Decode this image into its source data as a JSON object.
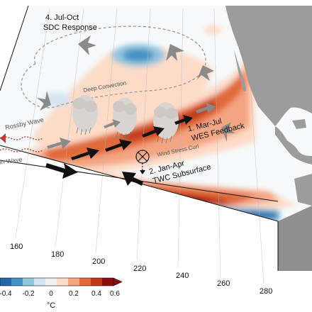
{
  "map": {
    "stages": {
      "stage1": [
        "1. Mar-Jul",
        "WES Feedback"
      ],
      "stage2": [
        "2. Jan-Apr",
        "TWC Subsurface"
      ],
      "stage4": [
        "4. Jul-Oct",
        "SDC Response"
      ]
    },
    "labels": {
      "deep_convection": "Deep Convection",
      "rossby_wave": "Rossby Wave",
      "kelvin_wave": "in Wave",
      "wind_stress_curl": "Wind Stress Curl"
    },
    "longitude_ticks": [
      "160",
      "180",
      "200",
      "220",
      "240",
      "260",
      "280"
    ],
    "colorbar": {
      "ticks": [
        "-0.4",
        "-0.2",
        "0",
        "0.2",
        "0.4",
        "0.6"
      ],
      "unit": "°C",
      "colors": [
        "#2166ac",
        "#4393c3",
        "#92c5de",
        "#d1e5f0",
        "#f2f2f2",
        "#fddbc7",
        "#f4a582",
        "#e06a3a",
        "#c0391f",
        "#8b0e0e"
      ]
    },
    "palette": {
      "land": "#9c9c9c",
      "arrow_gray": "#8a8a8a",
      "arrow_black": "#111111",
      "kelvin_red": "#c0392b"
    }
  }
}
